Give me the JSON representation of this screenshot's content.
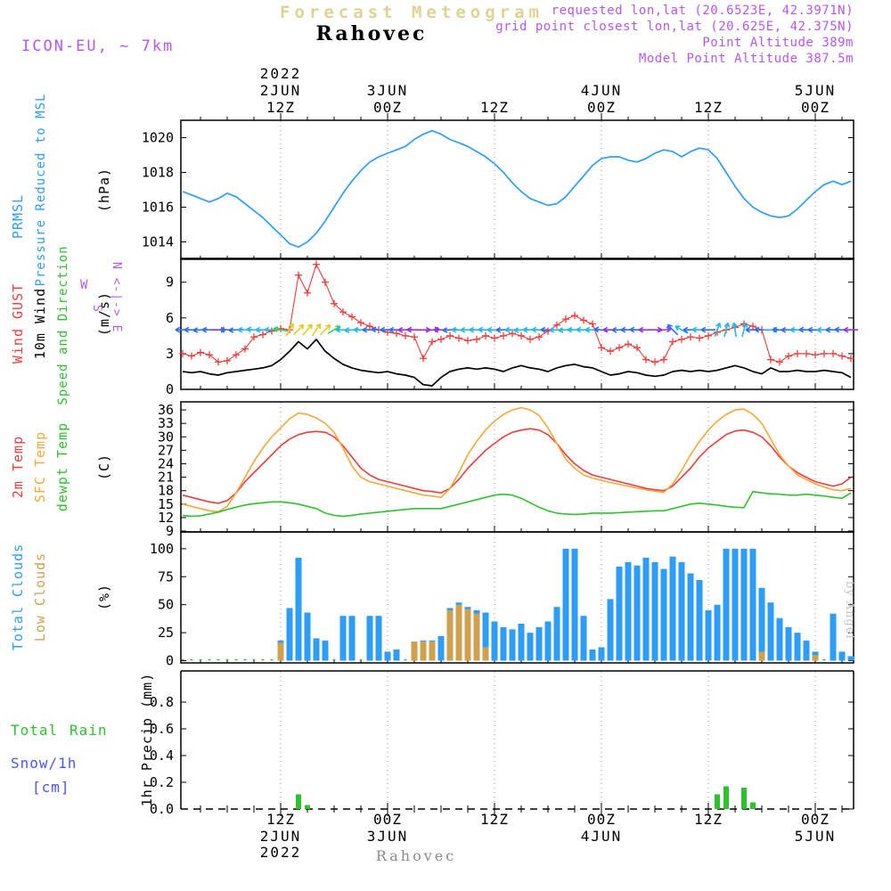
{
  "header": {
    "title_top": "Forecast Meteogram",
    "station": "Rahovec",
    "model_label": "ICON-EU, ~ 7km",
    "meta_lines": [
      "requested lon,lat (20.6523E, 42.3971N)",
      "grid point closest lon,lat (20.625E, 42.375N)",
      "Point Altitude 389m",
      "Model Point Altitude 387.5m"
    ]
  },
  "footer_station": "Rahovec",
  "watermark": "by Angel",
  "compass": {
    "w": "W",
    "s": "S",
    "vertical": "N <-|-> E"
  },
  "precip_legend": {
    "total": "Total",
    "rain": "Rain",
    "snow": "Snow/1h",
    "cm": "[cm]"
  },
  "colors": {
    "blue": "#2e9df7",
    "red": "#f03c3c",
    "green": "#2ec22e",
    "orange": "#f2a93b",
    "tan": "#cfa14e",
    "purple": "#b857f0",
    "khaki_title": "#ddd394",
    "snow_blue": "#4a56e8",
    "footer_gray": "#8a8a8a",
    "watermark_gray": "#c6c6c6",
    "grid_gray": "#9a9a9a"
  },
  "side_labels": [
    {
      "text": "PRMSL",
      "color": "#2e9df7"
    },
    {
      "text": "Pressure Reduced to MSL",
      "color": "#2e9df7"
    },
    {
      "text": "(hPa)",
      "color": "#000000"
    },
    {
      "text": "Wind GUST",
      "color": "#f03c3c"
    },
    {
      "text": "10m Wind",
      "color": "#000000"
    },
    {
      "text": "Speed and Direction",
      "color": "#2ec22e"
    },
    {
      "text": "(m/s)",
      "color": "#000000"
    },
    {
      "text": "2m Temp",
      "color": "#f03c3c"
    },
    {
      "text": "SFC Temp",
      "color": "#f2a93b"
    },
    {
      "text": "dewpt Temp",
      "color": "#2ec22e"
    },
    {
      "text": "(C)",
      "color": "#000000"
    },
    {
      "text": "Total Clouds",
      "color": "#2e9df7"
    },
    {
      "text": "Low Clouds",
      "color": "#cfa14e"
    },
    {
      "text": "(%)",
      "color": "#000000"
    },
    {
      "text": "1hr Precip (mm)",
      "color": "#000000"
    }
  ],
  "time_axis": {
    "year_top": "2022",
    "year_bottom": "2022",
    "ticks": [
      {
        "hour": 12,
        "z": "12Z",
        "day": "2JUN",
        "show_year": true
      },
      {
        "hour": 24,
        "z": "00Z",
        "day": "3JUN"
      },
      {
        "hour": 36,
        "z": "12Z"
      },
      {
        "hour": 48,
        "z": "00Z",
        "day": "4JUN"
      },
      {
        "hour": 60,
        "z": "12Z"
      },
      {
        "hour": 72,
        "z": "00Z",
        "day": "5JUN"
      }
    ]
  },
  "chart_data": [
    {
      "type": "line",
      "panel": "pressure",
      "ylabel": "hPa",
      "ylim": [
        1013,
        1021
      ],
      "yticks": [
        1014,
        1016,
        1018,
        1020
      ],
      "x_axis": {
        "unit": "hours after 2JUN 00Z 2022",
        "start": 1,
        "step": 1,
        "count": 76
      },
      "series": [
        {
          "name": "PRMSL Pressure Reduced to MSL",
          "color": "#2e9df7",
          "values": [
            1016.9,
            1016.7,
            1016.5,
            1016.3,
            1016.5,
            1016.8,
            1016.6,
            1016.2,
            1015.8,
            1015.4,
            1014.9,
            1014.4,
            1013.9,
            1013.7,
            1014.0,
            1014.5,
            1015.2,
            1016.0,
            1016.8,
            1017.5,
            1018.1,
            1018.6,
            1018.9,
            1019.1,
            1019.3,
            1019.5,
            1019.9,
            1020.2,
            1020.4,
            1020.2,
            1019.9,
            1019.7,
            1019.5,
            1019.2,
            1018.9,
            1018.5,
            1018.0,
            1017.4,
            1016.9,
            1016.5,
            1016.3,
            1016.1,
            1016.2,
            1016.6,
            1017.2,
            1017.8,
            1018.4,
            1018.8,
            1018.9,
            1018.9,
            1018.7,
            1018.6,
            1018.8,
            1019.1,
            1019.3,
            1019.2,
            1018.9,
            1019.2,
            1019.4,
            1019.3,
            1018.8,
            1018.0,
            1017.2,
            1016.5,
            1016.0,
            1015.7,
            1015.5,
            1015.4,
            1015.5,
            1015.9,
            1016.4,
            1016.9,
            1017.3,
            1017.5,
            1017.3,
            1017.5
          ]
        }
      ]
    },
    {
      "type": "line",
      "panel": "wind",
      "ylabel": "m/s",
      "ylim": [
        0,
        11
      ],
      "yticks": [
        0,
        3,
        6,
        9
      ],
      "arrow_row_value": 5,
      "arrow_speed_colors": [
        {
          "max": 1.25,
          "color": "#9b30e0"
        },
        {
          "max": 1.55,
          "color": "#2e6df5"
        },
        {
          "max": 2.1,
          "color": "#27b8e8"
        },
        {
          "max": 3.1,
          "color": "#35cf5a"
        },
        {
          "max": 99,
          "color": "#e3cb2a"
        }
      ],
      "wind_direction_deg": [
        270,
        270,
        265,
        270,
        90,
        270,
        265,
        270,
        275,
        270,
        270,
        280,
        30,
        45,
        40,
        35,
        45,
        60,
        270,
        265,
        270,
        270,
        275,
        270,
        270,
        268,
        272,
        90,
        85,
        270,
        265,
        270,
        268,
        270,
        272,
        270,
        268,
        270,
        265,
        270,
        272,
        270,
        268,
        265,
        270,
        272,
        270,
        275,
        270,
        268,
        270,
        272,
        270,
        90,
        85,
        315,
        300,
        270,
        272,
        270,
        20,
        15,
        350,
        15,
        270,
        272,
        90,
        270,
        268,
        270,
        272,
        270,
        268,
        270,
        272,
        270
      ],
      "series": [
        {
          "name": "Wind GUST",
          "color": "#f03c3c",
          "marker": "plus",
          "values": [
            3.0,
            2.8,
            3.1,
            2.9,
            2.3,
            2.4,
            2.9,
            3.4,
            4.4,
            4.6,
            4.9,
            5.1,
            5.0,
            9.6,
            8.1,
            10.5,
            9.0,
            7.2,
            6.5,
            6.1,
            5.6,
            5.3,
            5.0,
            4.8,
            4.7,
            4.5,
            4.4,
            2.6,
            4.0,
            4.2,
            4.5,
            4.3,
            4.1,
            4.2,
            4.5,
            4.3,
            4.5,
            4.7,
            4.5,
            4.2,
            4.4,
            4.9,
            5.4,
            5.9,
            6.2,
            5.8,
            5.5,
            3.5,
            3.2,
            3.5,
            3.8,
            3.5,
            2.5,
            2.3,
            2.5,
            4.0,
            4.2,
            4.4,
            4.3,
            4.5,
            4.8,
            5.0,
            5.2,
            5.5,
            5.3,
            5.0,
            2.5,
            2.3,
            2.8,
            3.0,
            3.0,
            2.9,
            3.0,
            3.0,
            2.8,
            2.6
          ]
        },
        {
          "name": "10m Wind",
          "color": "#000000",
          "values": [
            1.5,
            1.4,
            1.5,
            1.3,
            1.2,
            1.4,
            1.5,
            1.6,
            1.7,
            1.8,
            2.0,
            2.5,
            3.2,
            4.0,
            3.4,
            4.2,
            3.2,
            2.6,
            2.1,
            1.8,
            1.6,
            1.5,
            1.4,
            1.5,
            1.3,
            1.2,
            1.0,
            0.4,
            0.3,
            1.0,
            1.5,
            1.7,
            1.8,
            1.7,
            1.8,
            1.7,
            1.5,
            1.8,
            2.0,
            1.8,
            1.7,
            1.5,
            1.8,
            2.0,
            2.1,
            1.9,
            1.8,
            1.5,
            1.2,
            1.3,
            1.5,
            1.4,
            1.2,
            1.1,
            1.2,
            1.5,
            1.6,
            1.5,
            1.6,
            1.5,
            1.6,
            1.8,
            2.0,
            1.8,
            1.5,
            1.3,
            1.8,
            1.5,
            1.5,
            1.6,
            1.5,
            1.5,
            1.6,
            1.5,
            1.4,
            1.0
          ]
        }
      ]
    },
    {
      "type": "line",
      "panel": "temperature",
      "ylabel": "C",
      "ylim": [
        9,
        37
      ],
      "yticks": [
        9,
        12,
        15,
        18,
        21,
        24,
        27,
        30,
        33,
        36
      ],
      "series": [
        {
          "name": "2m Temp",
          "color": "#f03c3c",
          "values": [
            17.0,
            16.5,
            16.0,
            15.5,
            15.2,
            15.8,
            17.5,
            20.0,
            22.0,
            24.0,
            26.0,
            28.0,
            29.5,
            30.5,
            31.0,
            31.2,
            31.0,
            30.0,
            28.0,
            25.5,
            23.0,
            21.5,
            20.5,
            20.0,
            19.5,
            19.0,
            18.5,
            18.0,
            17.8,
            17.5,
            18.5,
            20.5,
            23.0,
            25.0,
            27.0,
            28.5,
            30.0,
            31.0,
            31.5,
            31.8,
            31.5,
            30.5,
            28.5,
            26.0,
            24.0,
            22.5,
            21.5,
            21.0,
            20.5,
            20.0,
            19.5,
            19.0,
            18.5,
            18.2,
            18.0,
            19.0,
            21.0,
            23.0,
            25.5,
            27.5,
            29.0,
            30.5,
            31.3,
            31.5,
            31.0,
            30.0,
            28.0,
            25.5,
            23.5,
            22.0,
            21.0,
            20.0,
            19.5,
            19.0,
            19.5,
            21.0
          ]
        },
        {
          "name": "SFC Temp",
          "color": "#f2a93b",
          "values": [
            15.0,
            14.5,
            14.0,
            13.5,
            13.3,
            14.5,
            17.5,
            21.0,
            24.5,
            27.5,
            30.0,
            32.0,
            34.0,
            35.3,
            35.0,
            34.2,
            33.0,
            31.0,
            27.5,
            23.5,
            21.0,
            20.0,
            19.5,
            19.0,
            18.5,
            18.0,
            17.5,
            17.0,
            16.8,
            16.5,
            18.5,
            22.0,
            26.0,
            29.0,
            31.5,
            33.5,
            35.0,
            36.0,
            36.5,
            36.0,
            34.8,
            32.0,
            28.5,
            25.0,
            23.0,
            21.5,
            20.8,
            20.3,
            19.8,
            19.4,
            19.0,
            18.6,
            18.2,
            17.9,
            17.6,
            19.5,
            22.5,
            26.0,
            29.0,
            31.5,
            33.5,
            35.0,
            36.0,
            36.2,
            35.0,
            33.0,
            29.5,
            26.0,
            23.5,
            21.5,
            20.5,
            19.5,
            18.8,
            18.2,
            18.0,
            18.5
          ]
        },
        {
          "name": "dewpt Temp",
          "color": "#2ec22e",
          "values": [
            12.5,
            12.3,
            12.4,
            12.8,
            13.2,
            13.8,
            14.3,
            14.8,
            15.1,
            15.3,
            15.5,
            15.5,
            15.3,
            15.0,
            14.5,
            14.0,
            13.0,
            12.5,
            12.3,
            12.5,
            12.8,
            13.0,
            13.2,
            13.4,
            13.6,
            13.8,
            14.0,
            14.0,
            14.0,
            14.0,
            14.5,
            15.0,
            15.5,
            16.0,
            16.5,
            17.0,
            17.2,
            17.0,
            16.3,
            15.3,
            14.3,
            13.5,
            13.0,
            12.8,
            12.7,
            12.8,
            13.0,
            13.0,
            13.0,
            13.1,
            13.2,
            13.3,
            13.4,
            13.5,
            13.5,
            14.0,
            14.5,
            15.0,
            15.2,
            15.0,
            14.8,
            14.5,
            14.3,
            14.2,
            17.8,
            17.5,
            17.3,
            17.2,
            17.0,
            17.0,
            17.2,
            17.0,
            16.8,
            16.5,
            16.3,
            17.5
          ]
        }
      ]
    },
    {
      "type": "bar",
      "panel": "clouds",
      "ylabel": "%",
      "ylim": [
        0,
        100
      ],
      "yticks": [
        0,
        25,
        50,
        75,
        100
      ],
      "series": [
        {
          "name": "Total Clouds",
          "color": "#2e9df7",
          "values": [
            0,
            0,
            0,
            0,
            0,
            0,
            0,
            0,
            0,
            0,
            0,
            18,
            47,
            92,
            43,
            20,
            18,
            0,
            40,
            40,
            0,
            40,
            40,
            8,
            10,
            0,
            17,
            18,
            18,
            22,
            47,
            52,
            48,
            45,
            43,
            35,
            30,
            28,
            33,
            25,
            30,
            35,
            48,
            100,
            100,
            40,
            10,
            12,
            55,
            84,
            88,
            85,
            92,
            88,
            82,
            93,
            88,
            78,
            72,
            45,
            50,
            100,
            100,
            100,
            100,
            65,
            52,
            38,
            30,
            25,
            18,
            8,
            0,
            42,
            8,
            4
          ]
        },
        {
          "name": "Low Clouds",
          "color": "#cfa14e",
          "values": [
            0,
            0,
            0,
            0,
            0,
            0,
            0,
            0,
            0,
            0,
            0,
            16,
            0,
            0,
            0,
            0,
            0,
            0,
            0,
            0,
            0,
            0,
            0,
            0,
            0,
            0,
            17,
            17,
            17,
            0,
            45,
            50,
            46,
            42,
            12,
            0,
            0,
            0,
            0,
            0,
            0,
            0,
            0,
            0,
            0,
            0,
            0,
            0,
            0,
            0,
            0,
            0,
            0,
            0,
            0,
            0,
            0,
            0,
            0,
            0,
            0,
            0,
            0,
            0,
            0,
            8,
            0,
            0,
            0,
            0,
            0,
            5,
            0,
            0,
            0,
            0
          ]
        }
      ]
    },
    {
      "type": "bar",
      "panel": "precipitation",
      "ylabel": "mm",
      "ylim": [
        0,
        1.0
      ],
      "yticks": [
        0.0,
        0.2,
        0.4,
        0.6,
        0.8
      ],
      "zero_line_dashed": true,
      "series": [
        {
          "name": "Total Rain",
          "color": "#2ec22e",
          "values": [
            0,
            0,
            0,
            0,
            0,
            0,
            0,
            0,
            0,
            0,
            0,
            0,
            0,
            0.11,
            0.03,
            0,
            0,
            0,
            0,
            0,
            0,
            0,
            0,
            0,
            0,
            0,
            0,
            0,
            0,
            0,
            0,
            0,
            0,
            0,
            0,
            0,
            0,
            0,
            0,
            0,
            0,
            0,
            0,
            0,
            0,
            0,
            0,
            0,
            0,
            0,
            0,
            0,
            0,
            0,
            0,
            0,
            0,
            0,
            0,
            0,
            0.11,
            0.17,
            0,
            0.16,
            0.05,
            0,
            0,
            0,
            0,
            0,
            0,
            0,
            0,
            0,
            0,
            0
          ]
        },
        {
          "name": "Snow/1h [cm]",
          "color": "#4a56e8",
          "values": [
            0,
            0,
            0,
            0,
            0,
            0,
            0,
            0,
            0,
            0,
            0,
            0,
            0,
            0,
            0,
            0,
            0,
            0,
            0,
            0,
            0,
            0,
            0,
            0,
            0,
            0,
            0,
            0,
            0,
            0,
            0,
            0,
            0,
            0,
            0,
            0,
            0,
            0,
            0,
            0,
            0,
            0,
            0,
            0,
            0,
            0,
            0,
            0,
            0,
            0,
            0,
            0,
            0,
            0,
            0,
            0,
            0,
            0,
            0,
            0,
            0,
            0,
            0,
            0,
            0,
            0,
            0,
            0,
            0,
            0,
            0,
            0,
            0,
            0,
            0,
            0
          ]
        }
      ]
    }
  ]
}
